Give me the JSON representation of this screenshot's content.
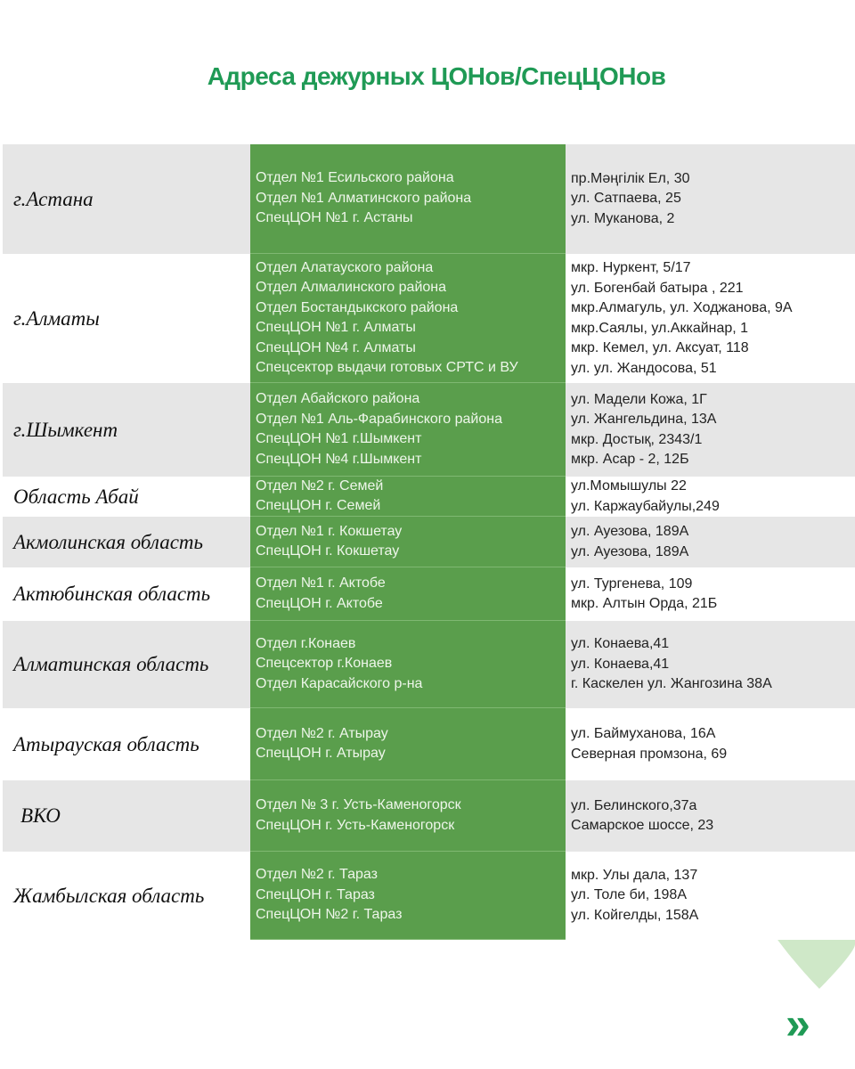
{
  "title": "Адреса дежурных ЦОНов/СпецЦОНов",
  "rows": [
    {
      "region": "г.Астана",
      "offices": [
        "Отдел №1 Есильского района",
        "Отдел №1 Алматинского района",
        "СпецЦОН №1 г. Астаны"
      ],
      "addresses": [
        "пр.Мәңгілік Ел, 30",
        "ул. Сатпаева, 25",
        "ул. Муканова, 2"
      ]
    },
    {
      "region": "г.Алматы",
      "offices": [
        "Отдел  Алатауского района",
        "Отдел Алмалинского района",
        "Отдел Бостандыкского района",
        "СпецЦОН №1 г. Алматы",
        "СпецЦОН №4 г. Алматы",
        "Спецсектор выдачи готовых СРТС и ВУ"
      ],
      "addresses": [
        "мкр. Нуркент, 5/17",
        "ул. Богенбай батыра , 221",
        "мкр.Алмагуль, ул. Ходжанова, 9А",
        "мкр.Саялы, ул.Аккайнар, 1",
        "мкр. Кемел, ул. Аксуат, 118",
        "ул. ул. Жандосова, 51"
      ]
    },
    {
      "region": "г.Шымкент",
      "offices": [
        "Отдел Абайского района",
        "Отдел №1 Аль-Фарабинского района",
        "СпецЦОН №1 г.Шымкент",
        "СпецЦОН №4 г.Шымкент"
      ],
      "addresses": [
        "ул. Мадели Кожа, 1Г",
        "ул. Жангельдина, 13А",
        "мкр. Достық, 2343/1",
        "мкр. Асар - 2, 12Б"
      ]
    },
    {
      "region": "Область Абай",
      "offices": [
        "Отдел №2 г. Семей",
        "СпецЦОН г. Семей"
      ],
      "addresses": [
        "ул.Момышулы 22",
        "ул. Каржаубайулы,249"
      ]
    },
    {
      "region": "Акмолинская область",
      "offices": [
        "Отдел №1 г. Кокшетау",
        "СпецЦОН г. Кокшетау"
      ],
      "addresses": [
        "ул. Ауезова, 189А",
        "ул. Ауезова, 189А"
      ]
    },
    {
      "region": "Актюбинская область",
      "offices": [
        "Отдел №1 г. Актобе",
        "СпецЦОН г. Актобе"
      ],
      "addresses": [
        "ул. Тургенева, 109",
        "мкр. Алтын Орда, 21Б"
      ]
    },
    {
      "region": "Алматинская область",
      "offices": [
        "Отдел г.Конаев",
        "Спецсектор г.Конаев",
        "Отдел Карасайского р-на"
      ],
      "addresses": [
        "ул. Конаева,41",
        "ул. Конаева,41",
        "г. Каскелен ул. Жангозина 38А"
      ]
    },
    {
      "region": "Атырауская область",
      "offices": [
        "Отдел №2 г. Атырау",
        "СпецЦОН г. Атырау"
      ],
      "addresses": [
        "ул. Баймуханова, 16А",
        "Северная промзона, 69"
      ]
    },
    {
      "region": "ВКО",
      "offices": [
        "Отдел № 3 г. Усть-Каменогорск",
        "СпецЦОН г. Усть-Каменогорск"
      ],
      "addresses": [
        "ул. Белинского,37а",
        "Самарское шоссе, 23"
      ]
    },
    {
      "region": "Жамбылская область",
      "offices": [
        "Отдел №2 г. Тараз",
        "СпецЦОН г. Тараз",
        "СпецЦОН №2 г. Тараз"
      ],
      "addresses": [
        "мкр. Улы дала, 137",
        "ул. Толе би, 198А",
        "ул. Койгелды, 158А"
      ]
    }
  ],
  "colors": {
    "accent": "#1f9a55",
    "office_column": "#5a9e4c",
    "row_gray": "#e6e6e6"
  },
  "icons": [
    "location-pin-icon",
    "double-chevron-right-icon"
  ]
}
